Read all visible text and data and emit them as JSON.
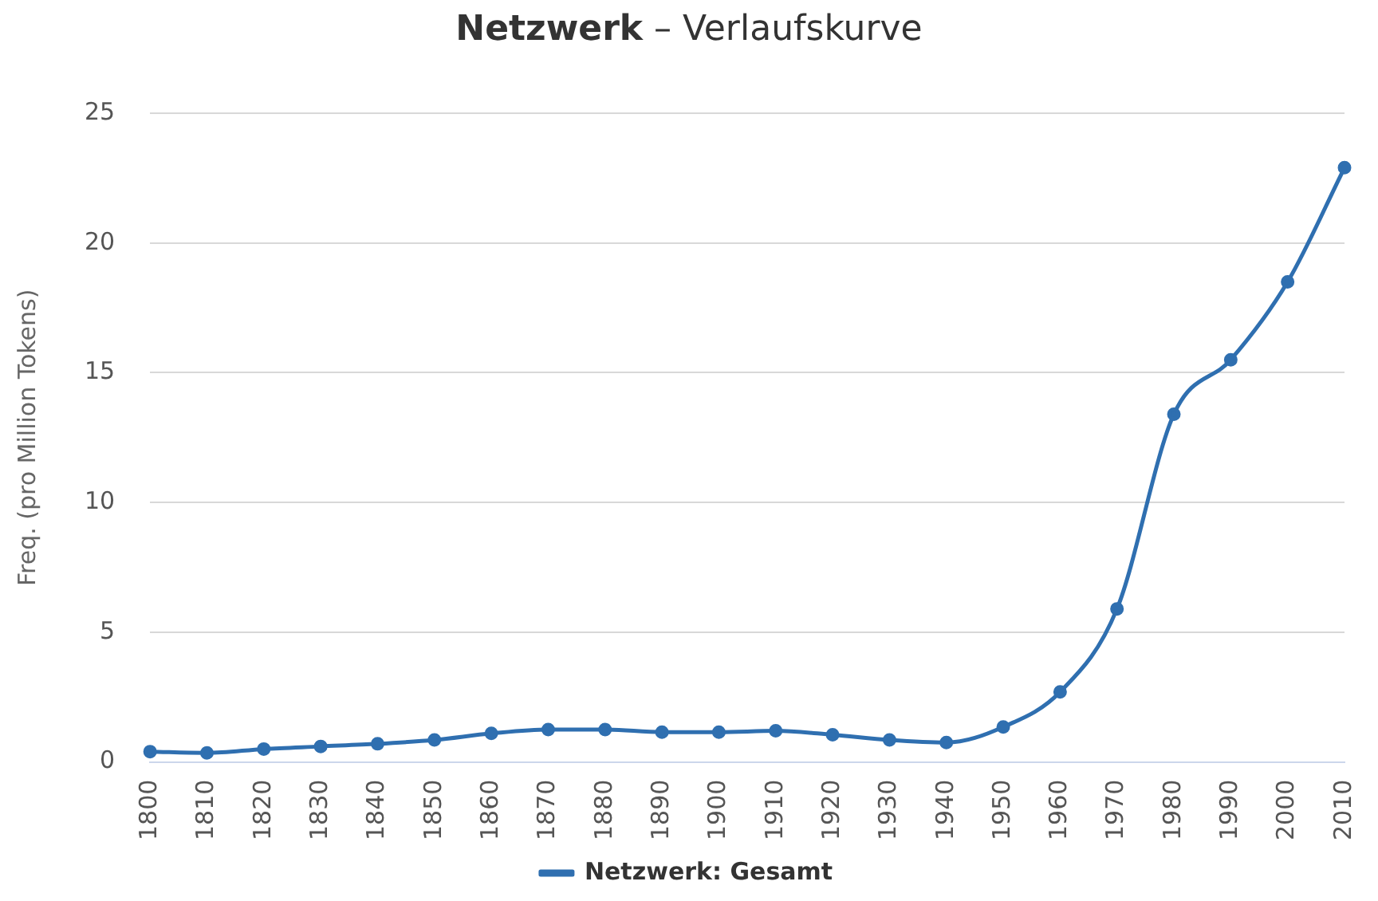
{
  "chart_data": {
    "type": "line",
    "title": "Netzwerk – Verlaufskurve",
    "ylabel": "Freq. (pro Million Tokens)",
    "categories": [
      "1800",
      "1810",
      "1820",
      "1830",
      "1840",
      "1850",
      "1860",
      "1870",
      "1880",
      "1890",
      "1900",
      "1910",
      "1920",
      "1930",
      "1940",
      "1950",
      "1960",
      "1970",
      "1980",
      "1990",
      "2000",
      "2010"
    ],
    "series": [
      {
        "name": "Netzwerk: Gesamt",
        "color": "#2f6fb0",
        "values": [
          0.4,
          0.35,
          0.5,
          0.6,
          0.7,
          0.85,
          1.1,
          1.25,
          1.25,
          1.15,
          1.15,
          1.2,
          1.05,
          0.85,
          0.75,
          1.35,
          2.7,
          5.9,
          13.4,
          15.5,
          18.5,
          22.9
        ]
      }
    ],
    "ylim": [
      0,
      25
    ],
    "yticks": [
      0,
      5,
      10,
      15,
      20,
      25
    ],
    "grid": "y",
    "legend": "bottom",
    "marker": "circle",
    "line_style": "solid"
  }
}
